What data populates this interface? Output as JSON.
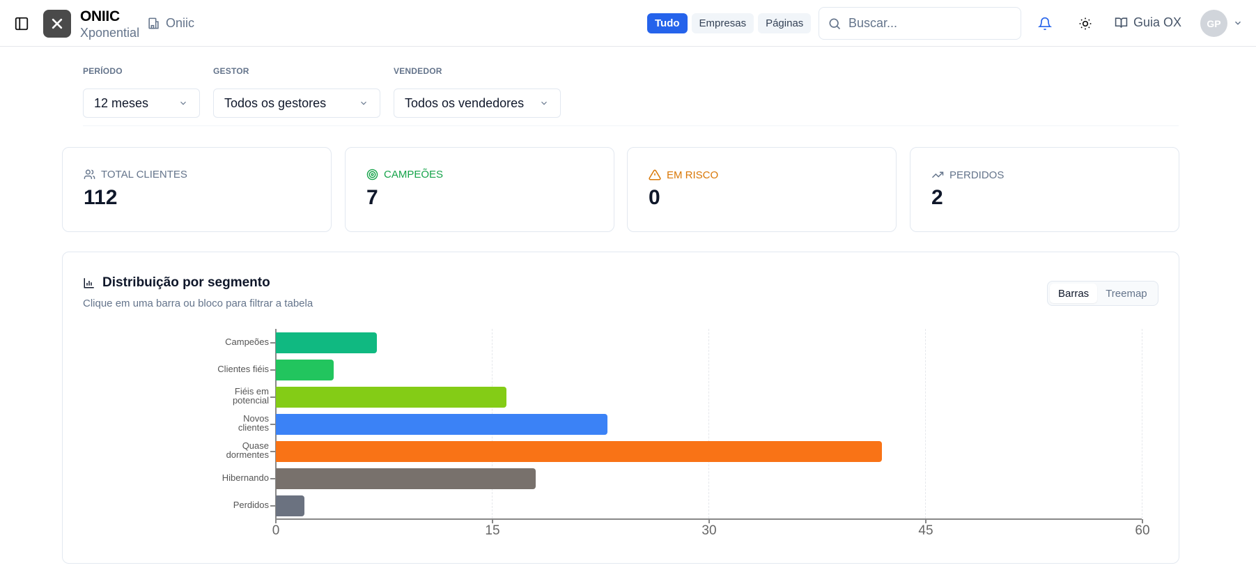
{
  "header": {
    "brand_name": "ONIIC",
    "brand_sub": "Xponential",
    "org_name": "Oniic",
    "scope_tabs": [
      {
        "label": "Tudo",
        "active": true
      },
      {
        "label": "Empresas",
        "active": false
      },
      {
        "label": "Páginas",
        "active": false
      }
    ],
    "search_placeholder": "Buscar...",
    "guide_label": "Guia OX",
    "avatar_initials": "GP",
    "icons": [
      "sidebar-toggle-icon",
      "close-x-icon",
      "building-icon",
      "search-icon",
      "bell-icon",
      "sun-icon",
      "book-open-icon",
      "chevron-down-icon"
    ]
  },
  "filters": [
    {
      "label": "PERÍODO",
      "value": "12 meses"
    },
    {
      "label": "GESTOR",
      "value": "Todos os gestores"
    },
    {
      "label": "VENDEDOR",
      "value": "Todos os vendedores"
    }
  ],
  "kpis": [
    {
      "label": "TOTAL CLIENTES",
      "value": "112",
      "icon": "users-icon",
      "color": "#64748b"
    },
    {
      "label": "CAMPEÕES",
      "value": "7",
      "icon": "target-icon",
      "color": "#16a34a"
    },
    {
      "label": "EM RISCO",
      "value": "0",
      "icon": "alert-triangle-icon",
      "color": "#d97706"
    },
    {
      "label": "PERDIDOS",
      "value": "2",
      "icon": "trending-icon",
      "color": "#64748b"
    }
  ],
  "chart_card": {
    "title": "Distribuição por segmento",
    "subtitle": "Clique em uma barra ou bloco para filtrar a tabela",
    "view_options": [
      {
        "label": "Barras",
        "active": true
      },
      {
        "label": "Treemap",
        "active": false
      }
    ]
  },
  "chart_data": {
    "type": "bar",
    "orientation": "horizontal",
    "title": "Distribuição por segmento",
    "categories": [
      "Campeões",
      "Clientes fiéis",
      "Fiéis em potencial",
      "Novos clientes",
      "Quase dormentes",
      "Hibernando",
      "Perdidos"
    ],
    "category_labels_wrapped": [
      "Campeões",
      "Clientes fiéis",
      "Fiéis em\npotencial",
      "Novos\nclientes",
      "Quase\ndormentes",
      "Hibernando",
      "Perdidos"
    ],
    "values": [
      7,
      4,
      16,
      23,
      42,
      18,
      2
    ],
    "colors": [
      "#10b981",
      "#22c55e",
      "#84cc16",
      "#3b82f6",
      "#f97316",
      "#78716c",
      "#6b7280"
    ],
    "xlabel": "",
    "ylabel": "",
    "xlim": [
      0,
      60
    ],
    "xticks": [
      "0",
      "15",
      "30",
      "45",
      "60"
    ],
    "grid": "vertical dashed",
    "legend": "none"
  }
}
